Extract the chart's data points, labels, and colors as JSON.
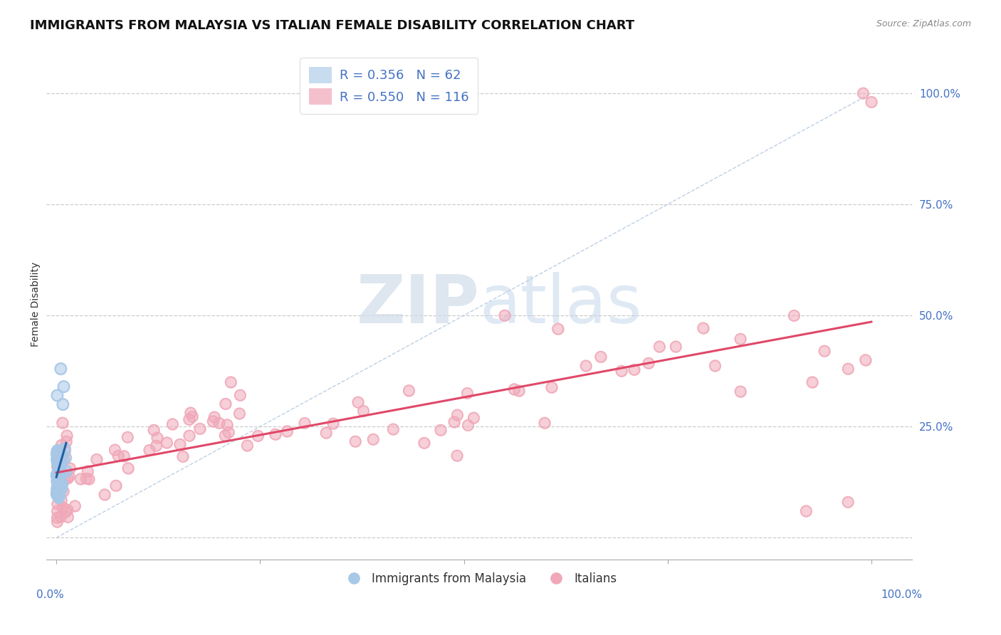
{
  "title": "IMMIGRANTS FROM MALAYSIA VS ITALIAN FEMALE DISABILITY CORRELATION CHART",
  "source": "Source: ZipAtlas.com",
  "ylabel": "Female Disability",
  "legend_blue_r": "R = 0.356",
  "legend_blue_n": "N = 62",
  "legend_pink_r": "R = 0.550",
  "legend_pink_n": "N = 116",
  "legend_label_blue": "Immigrants from Malaysia",
  "legend_label_pink": "Italians",
  "blue_scatter_color": "#a8c8e8",
  "pink_scatter_color": "#f0a8b8",
  "blue_line_color": "#2060a0",
  "pink_line_color": "#e04868",
  "diag_line_color": "#a0b8d8",
  "title_fontsize": 13,
  "axis_label_fontsize": 10,
  "tick_fontsize": 11,
  "legend_fontsize": 13
}
